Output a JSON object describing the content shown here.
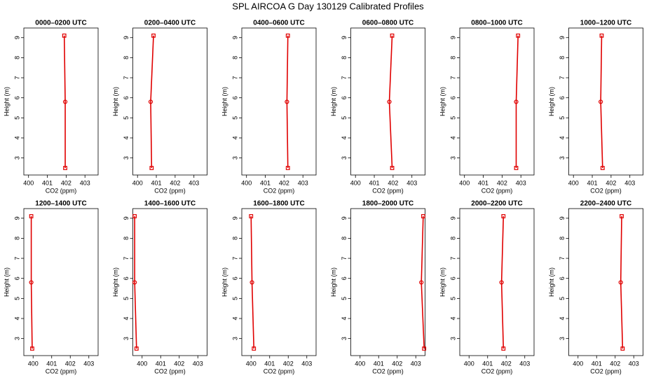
{
  "title": "SPL AIRCOA G  Day 130129  Calibrated Profiles",
  "chart_data": [
    {
      "type": "line",
      "title": "0000–0200 UTC",
      "xlabel": "CO2 (ppm)",
      "ylabel": "Height (m)",
      "color": "#e00000",
      "values": [
        401.9,
        401.95,
        401.95
      ],
      "y": [
        9.1,
        5.8,
        2.5
      ],
      "xlim": [
        399.75,
        403.7
      ],
      "xticks": [
        400,
        401,
        402,
        403
      ],
      "ylim": [
        2.15,
        9.48
      ],
      "yticks": [
        3,
        4,
        5,
        6,
        7,
        8,
        9
      ]
    },
    {
      "type": "line",
      "title": "0200–0400 UTC",
      "xlabel": "CO2 (ppm)",
      "ylabel": "Height (m)",
      "color": "#e00000",
      "values": [
        400.85,
        400.7,
        400.75
      ],
      "y": [
        9.1,
        5.8,
        2.5
      ],
      "xlim": [
        399.75,
        403.7
      ],
      "xticks": [
        400,
        401,
        402,
        403
      ],
      "ylim": [
        2.15,
        9.48
      ],
      "yticks": [
        3,
        4,
        5,
        6,
        7,
        8,
        9
      ]
    },
    {
      "type": "line",
      "title": "0400–0600 UTC",
      "xlabel": "CO2 (ppm)",
      "ylabel": "Height (m)",
      "color": "#e00000",
      "values": [
        402.2,
        402.15,
        402.2
      ],
      "y": [
        9.1,
        5.8,
        2.5
      ],
      "xlim": [
        399.75,
        403.7
      ],
      "xticks": [
        400,
        401,
        402,
        403
      ],
      "ylim": [
        2.15,
        9.48
      ],
      "yticks": [
        3,
        4,
        5,
        6,
        7,
        8,
        9
      ]
    },
    {
      "type": "line",
      "title": "0600–0800 UTC",
      "xlabel": "CO2 (ppm)",
      "ylabel": "Height (m)",
      "color": "#e00000",
      "values": [
        401.95,
        401.8,
        401.95
      ],
      "y": [
        9.1,
        5.8,
        2.5
      ],
      "xlim": [
        399.75,
        403.7
      ],
      "xticks": [
        400,
        401,
        402,
        403
      ],
      "ylim": [
        2.15,
        9.48
      ],
      "yticks": [
        3,
        4,
        5,
        6,
        7,
        8,
        9
      ]
    },
    {
      "type": "line",
      "title": "0800–1000 UTC",
      "xlabel": "CO2 (ppm)",
      "ylabel": "Height (m)",
      "color": "#e00000",
      "values": [
        402.85,
        402.75,
        402.75
      ],
      "y": [
        9.1,
        5.8,
        2.5
      ],
      "xlim": [
        399.75,
        403.7
      ],
      "xticks": [
        400,
        401,
        402,
        403
      ],
      "ylim": [
        2.15,
        9.48
      ],
      "yticks": [
        3,
        4,
        5,
        6,
        7,
        8,
        9
      ]
    },
    {
      "type": "line",
      "title": "1000–1200 UTC",
      "xlabel": "CO2 (ppm)",
      "ylabel": "Height (m)",
      "color": "#e00000",
      "values": [
        401.5,
        401.45,
        401.55
      ],
      "y": [
        9.1,
        5.8,
        2.5
      ],
      "xlim": [
        399.75,
        403.7
      ],
      "xticks": [
        400,
        401,
        402,
        403
      ],
      "ylim": [
        2.15,
        9.48
      ],
      "yticks": [
        3,
        4,
        5,
        6,
        7,
        8,
        9
      ]
    },
    {
      "type": "line",
      "title": "1200–1400 UTC",
      "xlabel": "CO2 (ppm)",
      "ylabel": "Height (m)",
      "color": "#e00000",
      "values": [
        399.9,
        399.9,
        399.95
      ],
      "y": [
        9.1,
        5.8,
        2.5
      ],
      "xlim": [
        399.5,
        403.5
      ],
      "xticks": [
        400,
        401,
        402,
        403
      ],
      "ylim": [
        2.15,
        9.48
      ],
      "yticks": [
        3,
        4,
        5,
        6,
        7,
        8,
        9
      ]
    },
    {
      "type": "line",
      "title": "1400–1600 UTC",
      "xlabel": "CO2 (ppm)",
      "ylabel": "Height (m)",
      "color": "#e00000",
      "values": [
        399.6,
        399.6,
        399.7
      ],
      "y": [
        9.1,
        5.8,
        2.5
      ],
      "xlim": [
        399.5,
        403.5
      ],
      "xticks": [
        400,
        401,
        402,
        403
      ],
      "ylim": [
        2.15,
        9.48
      ],
      "yticks": [
        3,
        4,
        5,
        6,
        7,
        8,
        9
      ]
    },
    {
      "type": "line",
      "title": "1600–1800 UTC",
      "xlabel": "CO2 (ppm)",
      "ylabel": "Height (m)",
      "color": "#e00000",
      "values": [
        400,
        400.05,
        400.15
      ],
      "y": [
        9.1,
        5.8,
        2.5
      ],
      "xlim": [
        399.5,
        403.5
      ],
      "xticks": [
        400,
        401,
        402,
        403
      ],
      "ylim": [
        2.15,
        9.48
      ],
      "yticks": [
        3,
        4,
        5,
        6,
        7,
        8,
        9
      ]
    },
    {
      "type": "line",
      "title": "1800–2000 UTC",
      "xlabel": "CO2 (ppm)",
      "ylabel": "Height (m)",
      "color": "#e00000",
      "values": [
        403.4,
        403.3,
        403.45
      ],
      "y": [
        9.1,
        5.8,
        2.5
      ],
      "xlim": [
        399.5,
        403.5
      ],
      "xticks": [
        400,
        401,
        402,
        403
      ],
      "ylim": [
        2.15,
        9.48
      ],
      "yticks": [
        3,
        4,
        5,
        6,
        7,
        8,
        9
      ]
    },
    {
      "type": "line",
      "title": "2000–2200 UTC",
      "xlabel": "CO2 (ppm)",
      "ylabel": "Height (m)",
      "color": "#e00000",
      "values": [
        401.85,
        401.75,
        401.85
      ],
      "y": [
        9.1,
        5.8,
        2.5
      ],
      "xlim": [
        399.5,
        403.5
      ],
      "xticks": [
        400,
        401,
        402,
        403
      ],
      "ylim": [
        2.15,
        9.48
      ],
      "yticks": [
        3,
        4,
        5,
        6,
        7,
        8,
        9
      ]
    },
    {
      "type": "line",
      "title": "2200–2400 UTC",
      "xlabel": "CO2 (ppm)",
      "ylabel": "Height (m)",
      "color": "#e00000",
      "values": [
        402.35,
        402.3,
        402.4
      ],
      "y": [
        9.1,
        5.8,
        2.5
      ],
      "xlim": [
        399.5,
        403.5
      ],
      "xticks": [
        400,
        401,
        402,
        403
      ],
      "ylim": [
        2.15,
        9.48
      ],
      "yticks": [
        3,
        4,
        5,
        6,
        7,
        8,
        9
      ]
    }
  ]
}
